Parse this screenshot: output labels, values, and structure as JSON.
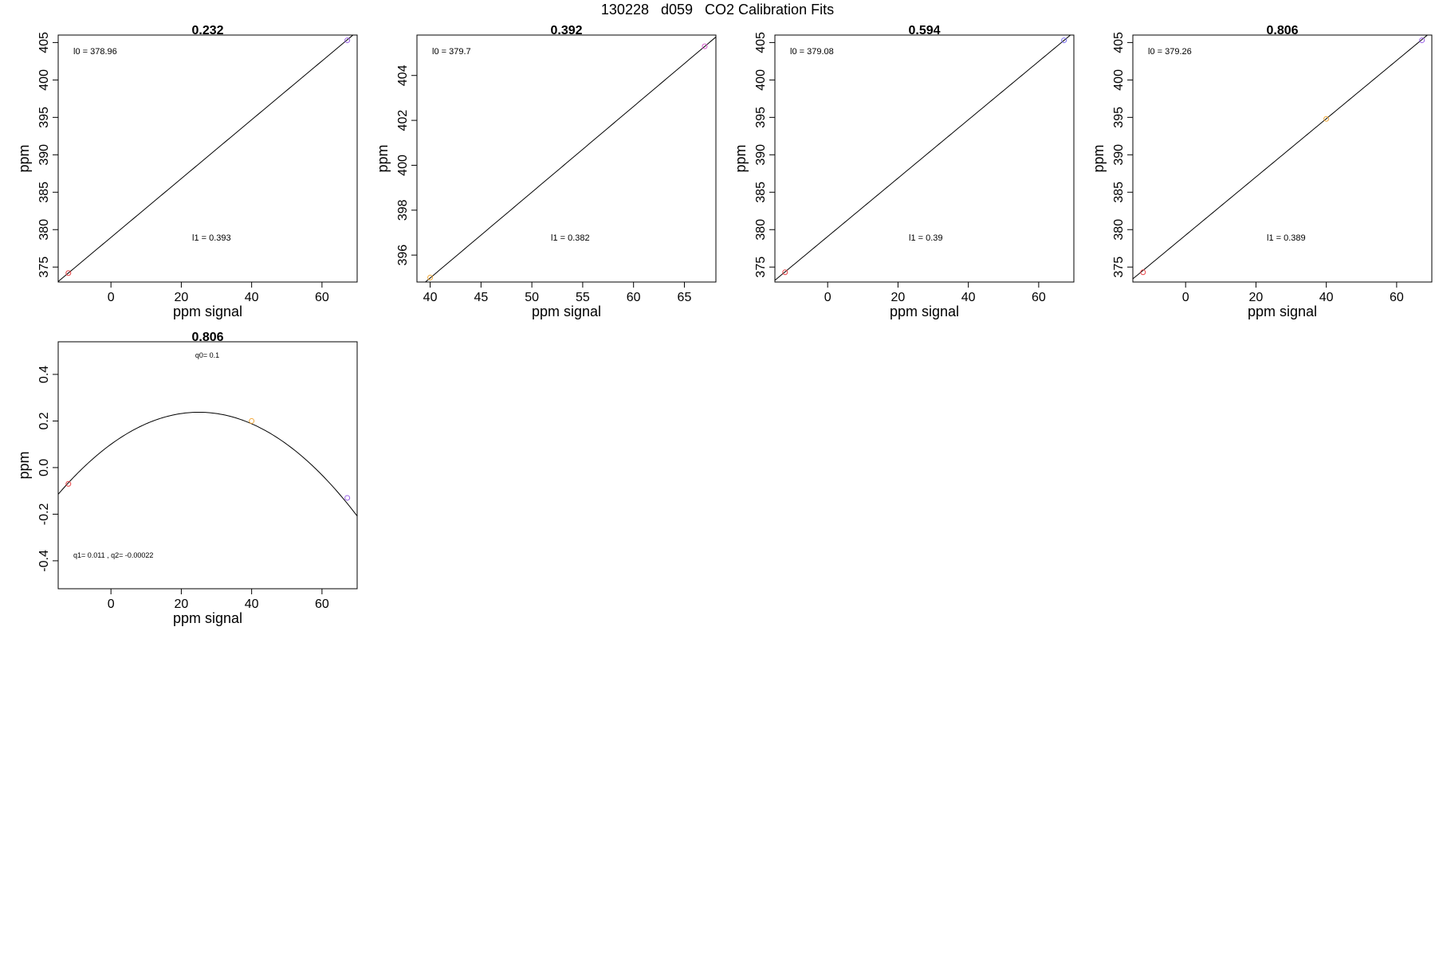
{
  "page": {
    "title": "130228   d059   CO2 Calibration Fits"
  },
  "chart_data": [
    {
      "type": "scatter",
      "title": "0.232",
      "xlabel": "ppm signal",
      "ylabel": "ppm",
      "xlim": [
        -15,
        70
      ],
      "ylim": [
        373,
        406
      ],
      "xticks": [
        0,
        20,
        40,
        60
      ],
      "yticks": [
        375,
        380,
        385,
        390,
        395,
        400,
        405
      ],
      "points": [
        {
          "x": -12.1,
          "y": 374.2,
          "color": "#e8474a"
        },
        {
          "x": 67.2,
          "y": 405.3,
          "color": "#9b63e8"
        }
      ],
      "fit": {
        "kind": "linear",
        "intercept": 378.96,
        "slope": 0.393
      },
      "annotations": [
        {
          "label": "l0 =",
          "value": "378.96"
        },
        {
          "label": "l1 =",
          "value": "0.393"
        }
      ],
      "grid": false,
      "legend": "none"
    },
    {
      "type": "scatter",
      "title": "0.392",
      "xlabel": "ppm signal",
      "ylabel": "ppm",
      "xlim": [
        38.7,
        68.1
      ],
      "ylim": [
        394.8,
        405.8
      ],
      "xticks": [
        40,
        45,
        50,
        55,
        60,
        65
      ],
      "yticks": [
        396,
        398,
        400,
        402,
        404
      ],
      "points": [
        {
          "x": 40.0,
          "y": 395.0,
          "color": "#f2a93b"
        },
        {
          "x": 67.0,
          "y": 405.3,
          "color": "#d75fd0"
        }
      ],
      "fit": {
        "kind": "linear",
        "intercept": 379.7,
        "slope": 0.382
      },
      "annotations": [
        {
          "label": "l0 =",
          "value": "379.7"
        },
        {
          "label": "l1 =",
          "value": "0.382"
        }
      ],
      "grid": false,
      "legend": "none"
    },
    {
      "type": "scatter",
      "title": "0.594",
      "xlabel": "ppm signal",
      "ylabel": "ppm",
      "xlim": [
        -15,
        70
      ],
      "ylim": [
        373,
        406
      ],
      "xticks": [
        0,
        20,
        40,
        60
      ],
      "yticks": [
        375,
        380,
        385,
        390,
        395,
        400,
        405
      ],
      "points": [
        {
          "x": -12.1,
          "y": 374.3,
          "color": "#e8474a"
        },
        {
          "x": 67.2,
          "y": 405.3,
          "color": "#7b6ff0"
        }
      ],
      "fit": {
        "kind": "linear",
        "intercept": 379.08,
        "slope": 0.39
      },
      "annotations": [
        {
          "label": "l0 =",
          "value": "379.08"
        },
        {
          "label": "l1 =",
          "value": "0.39"
        }
      ],
      "grid": false,
      "legend": "none"
    },
    {
      "type": "scatter",
      "title": "0.806",
      "xlabel": "ppm signal",
      "ylabel": "ppm",
      "xlim": [
        -15,
        70
      ],
      "ylim": [
        373,
        406
      ],
      "xticks": [
        0,
        20,
        40,
        60
      ],
      "yticks": [
        375,
        380,
        385,
        390,
        395,
        400,
        405
      ],
      "points": [
        {
          "x": -12.1,
          "y": 374.3,
          "color": "#e8474a"
        },
        {
          "x": 40.0,
          "y": 394.8,
          "color": "#f2a93b"
        },
        {
          "x": 67.2,
          "y": 405.3,
          "color": "#9b63e8"
        }
      ],
      "fit": {
        "kind": "linear",
        "intercept": 379.26,
        "slope": 0.389
      },
      "annotations": [
        {
          "label": "l0 =",
          "value": "379.26"
        },
        {
          "label": "l1 =",
          "value": "0.389"
        }
      ],
      "grid": false,
      "legend": "none"
    },
    {
      "type": "scatter",
      "title": "0.806",
      "xlabel": "ppm signal",
      "ylabel": "ppm",
      "xlim": [
        -15,
        70
      ],
      "ylim": [
        -0.52,
        0.54
      ],
      "xticks": [
        0,
        20,
        40,
        60
      ],
      "yticks": [
        -0.4,
        -0.2,
        0.0,
        0.2,
        0.4
      ],
      "ytick_labels": [
        "-0.4",
        "-0.2",
        "0.0",
        "0.2",
        "0.4"
      ],
      "points": [
        {
          "x": -12.1,
          "y": -0.07,
          "color": "#e8474a"
        },
        {
          "x": 40.0,
          "y": 0.2,
          "color": "#f2a93b"
        },
        {
          "x": 67.2,
          "y": -0.13,
          "color": "#9b63e8"
        }
      ],
      "fit": {
        "kind": "quadratic",
        "q0": 0.1,
        "q1": 0.011,
        "q2": -0.00022
      },
      "annotations": [
        {
          "label": "q0=",
          "value": "0.1"
        },
        {
          "label": "q1=",
          "value": "0.011"
        },
        {
          "label": ", q2=",
          "value": "-0.00022"
        }
      ],
      "grid": false,
      "legend": "none"
    }
  ]
}
